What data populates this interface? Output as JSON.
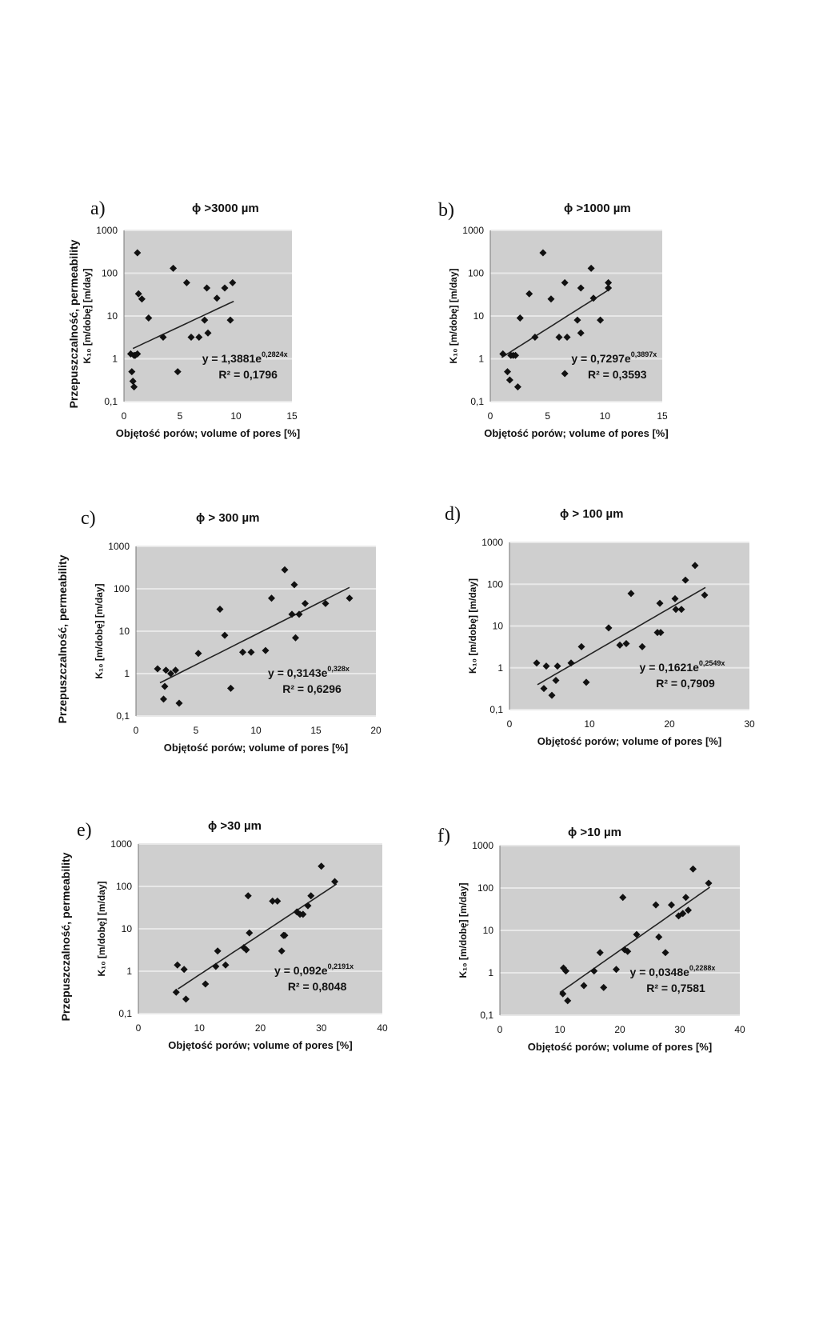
{
  "chart_data": [
    {
      "type": "scatter",
      "letter": "a)",
      "title": "ϕ >3000 µm",
      "xlabel": "Objętość porów; volume of pores [%]",
      "ylabel": "K₁₀ [m/dobę] [m/day]",
      "ylabel_outer": "Przepuszczalność, permeability",
      "xlim": [
        0,
        15
      ],
      "ylim": [
        0.1,
        1000
      ],
      "yscale": "log",
      "xticks": [
        "0",
        "5",
        "10",
        "15"
      ],
      "yticks": [
        "0,1",
        "1",
        "10",
        "100",
        "1000"
      ],
      "grid": true,
      "trendline": {
        "a": 1.3881,
        "b": 0.2824,
        "x_range": [
          0.8,
          9.8
        ]
      },
      "equation": "y = 1,3881e",
      "equation_exp": "0,2824x",
      "r2": "R² = 0,1796",
      "points": [
        [
          0.6,
          1.3
        ],
        [
          0.7,
          0.5
        ],
        [
          0.8,
          0.3
        ],
        [
          0.9,
          0.22
        ],
        [
          0.9,
          1.2
        ],
        [
          1.0,
          1.2
        ],
        [
          1.2,
          1.3
        ],
        [
          1.2,
          300
        ],
        [
          1.3,
          33
        ],
        [
          1.6,
          25
        ],
        [
          2.2,
          9
        ],
        [
          3.5,
          3.2
        ],
        [
          4.4,
          130
        ],
        [
          4.8,
          0.5
        ],
        [
          5.6,
          60
        ],
        [
          6.0,
          3.2
        ],
        [
          6.7,
          3.2
        ],
        [
          7.2,
          8
        ],
        [
          7.4,
          45
        ],
        [
          7.5,
          4
        ],
        [
          8.3,
          26
        ],
        [
          9.0,
          45
        ],
        [
          9.5,
          8
        ],
        [
          9.7,
          60
        ]
      ]
    },
    {
      "type": "scatter",
      "letter": "b)",
      "title": "ϕ >1000 µm",
      "xlabel": "Objętość porów; volume of pores [%]",
      "ylabel": "K₁₀ [m/dobę] [m/day]",
      "ylabel_outer": "",
      "xlim": [
        0,
        15
      ],
      "ylim": [
        0.1,
        1000
      ],
      "yscale": "log",
      "xticks": [
        "0",
        "5",
        "10",
        "15"
      ],
      "yticks": [
        "0,1",
        "1",
        "10",
        "100",
        "1000"
      ],
      "grid": true,
      "trendline": {
        "a": 0.7297,
        "b": 0.3897,
        "x_range": [
          1.0,
          10.3
        ]
      },
      "equation": "y = 0,7297e",
      "equation_exp": "0,3897x",
      "r2": "R² = 0,3593",
      "points": [
        [
          1.1,
          1.3
        ],
        [
          1.5,
          0.5
        ],
        [
          1.7,
          0.32
        ],
        [
          1.8,
          1.2
        ],
        [
          2.0,
          1.2
        ],
        [
          2.2,
          1.2
        ],
        [
          2.4,
          0.22
        ],
        [
          2.6,
          9
        ],
        [
          3.4,
          33
        ],
        [
          3.9,
          3.2
        ],
        [
          4.6,
          300
        ],
        [
          5.3,
          25
        ],
        [
          6.0,
          3.2
        ],
        [
          6.5,
          60
        ],
        [
          6.7,
          3.2
        ],
        [
          7.6,
          8
        ],
        [
          7.9,
          45
        ],
        [
          7.9,
          4
        ],
        [
          8.8,
          130
        ],
        [
          9.0,
          26
        ],
        [
          9.6,
          8
        ],
        [
          10.3,
          60
        ],
        [
          10.3,
          45
        ],
        [
          6.5,
          0.45
        ]
      ]
    },
    {
      "type": "scatter",
      "letter": "c)",
      "title": "ϕ > 300 µm",
      "xlabel": "Objętość porów; volume of pores [%]",
      "ylabel": "K₁₀ [m/dobę] [m/day]",
      "ylabel_outer": "Przepuszczalność, permeability",
      "xlim": [
        0,
        20
      ],
      "ylim": [
        0.1,
        1000
      ],
      "yscale": "log",
      "xticks": [
        "0",
        "5",
        "10",
        "15",
        "20"
      ],
      "yticks": [
        "0,1",
        "1",
        "10",
        "100",
        "1000"
      ],
      "grid": true,
      "trendline": {
        "a": 0.3143,
        "b": 0.328,
        "x_range": [
          2.0,
          17.8
        ]
      },
      "equation": "y = 0,3143e",
      "equation_exp": "0,328x",
      "r2": "R² = 0,6296",
      "points": [
        [
          1.8,
          1.3
        ],
        [
          2.3,
          0.25
        ],
        [
          2.4,
          0.5
        ],
        [
          2.5,
          1.2
        ],
        [
          2.9,
          1.0
        ],
        [
          3.3,
          1.2
        ],
        [
          3.6,
          0.2
        ],
        [
          5.2,
          3.0
        ],
        [
          7.0,
          33
        ],
        [
          7.4,
          8
        ],
        [
          7.9,
          0.45
        ],
        [
          8.9,
          3.2
        ],
        [
          9.6,
          3.2
        ],
        [
          10.8,
          3.5
        ],
        [
          11.3,
          60
        ],
        [
          12.4,
          280
        ],
        [
          13.0,
          25
        ],
        [
          13.2,
          125
        ],
        [
          13.3,
          7
        ],
        [
          13.6,
          25
        ],
        [
          14.1,
          45
        ],
        [
          15.8,
          45
        ],
        [
          17.8,
          60
        ]
      ]
    },
    {
      "type": "scatter",
      "letter": "d)",
      "title": "ϕ > 100 µm",
      "xlabel": "Objętość porów; volume of pores [%]",
      "ylabel": "K₁₀ [m/dobę] [m/day]",
      "ylabel_outer": "",
      "xlim": [
        0,
        30
      ],
      "ylim": [
        0.1,
        1000
      ],
      "yscale": "log",
      "xticks": [
        "0",
        "10",
        "20",
        "30"
      ],
      "yticks": [
        "0,1",
        "1",
        "10",
        "100",
        "1000"
      ],
      "grid": true,
      "trendline": {
        "a": 0.1621,
        "b": 0.2549,
        "x_range": [
          3.5,
          24.5
        ]
      },
      "equation": "y = 0,1621e",
      "equation_exp": "0,2549x",
      "r2": "R² = 0,7909",
      "points": [
        [
          3.4,
          1.3
        ],
        [
          4.3,
          0.32
        ],
        [
          4.6,
          1.1
        ],
        [
          5.3,
          0.22
        ],
        [
          5.8,
          0.5
        ],
        [
          6.0,
          1.1
        ],
        [
          7.7,
          1.3
        ],
        [
          9.0,
          3.2
        ],
        [
          9.6,
          0.45
        ],
        [
          12.4,
          9
        ],
        [
          13.8,
          3.5
        ],
        [
          14.6,
          3.8
        ],
        [
          15.2,
          60
        ],
        [
          16.6,
          3.2
        ],
        [
          18.5,
          7
        ],
        [
          18.8,
          35
        ],
        [
          18.9,
          7
        ],
        [
          20.7,
          45
        ],
        [
          20.8,
          25
        ],
        [
          21.5,
          25
        ],
        [
          22.0,
          125
        ],
        [
          23.2,
          280
        ],
        [
          24.4,
          55
        ]
      ]
    },
    {
      "type": "scatter",
      "letter": "e)",
      "title": "ϕ >30 µm",
      "xlabel": "Objętość porów; volume of pores [%]",
      "ylabel": "K₁₀ [m/dobę] [m/day]",
      "ylabel_outer": "Przepuszczalność, permeability",
      "xlim": [
        0,
        40
      ],
      "ylim": [
        0.1,
        1000
      ],
      "yscale": "log",
      "xticks": [
        "0",
        "10",
        "20",
        "30",
        "40"
      ],
      "yticks": [
        "0,1",
        "1",
        "10",
        "100",
        "1000"
      ],
      "grid": true,
      "trendline": {
        "a": 0.092,
        "b": 0.2191,
        "x_range": [
          6.5,
          32.5
        ]
      },
      "equation": "y = 0,092e",
      "equation_exp": "0,2191x",
      "r2": "R² = 0,8048",
      "points": [
        [
          6.2,
          0.32
        ],
        [
          6.4,
          1.4
        ],
        [
          7.5,
          1.1
        ],
        [
          7.8,
          0.22
        ],
        [
          11.0,
          0.5
        ],
        [
          12.7,
          1.3
        ],
        [
          13.0,
          3.0
        ],
        [
          14.3,
          1.4
        ],
        [
          17.3,
          3.6
        ],
        [
          17.7,
          3.2
        ],
        [
          18.0,
          60
        ],
        [
          18.2,
          8
        ],
        [
          22.0,
          45
        ],
        [
          22.8,
          45
        ],
        [
          23.5,
          3.0
        ],
        [
          23.8,
          7
        ],
        [
          24.0,
          7
        ],
        [
          26.0,
          25
        ],
        [
          26.5,
          22
        ],
        [
          27.0,
          22
        ],
        [
          27.8,
          35
        ],
        [
          28.3,
          60
        ],
        [
          30.0,
          300
        ],
        [
          32.2,
          130
        ]
      ]
    },
    {
      "type": "scatter",
      "letter": "f)",
      "title": "ϕ >10 µm",
      "xlabel": "Objętość porów; volume of pores [%]",
      "ylabel": "K₁₀ [m/dobę] [m/day]",
      "ylabel_outer": "",
      "xlim": [
        0,
        40
      ],
      "ylim": [
        0.1,
        1000
      ],
      "yscale": "log",
      "xticks": [
        "0",
        "10",
        "20",
        "30",
        "40"
      ],
      "yticks": [
        "0,1",
        "1",
        "10",
        "100",
        "1000"
      ],
      "grid": true,
      "trendline": {
        "a": 0.0348,
        "b": 0.2288,
        "x_range": [
          10.0,
          35.0
        ]
      },
      "equation": "y = 0,0348e",
      "equation_exp": "0,2288x",
      "r2": "R² = 0,7581",
      "points": [
        [
          10.5,
          0.32
        ],
        [
          10.6,
          1.3
        ],
        [
          11.0,
          1.1
        ],
        [
          11.3,
          0.22
        ],
        [
          14.0,
          0.5
        ],
        [
          15.7,
          1.1
        ],
        [
          16.7,
          3.0
        ],
        [
          17.3,
          0.45
        ],
        [
          19.4,
          1.2
        ],
        [
          20.5,
          60
        ],
        [
          20.8,
          3.5
        ],
        [
          21.3,
          3.2
        ],
        [
          22.8,
          8
        ],
        [
          26.0,
          40
        ],
        [
          26.5,
          7
        ],
        [
          27.6,
          3.0
        ],
        [
          28.6,
          40
        ],
        [
          29.8,
          22
        ],
        [
          30.5,
          25
        ],
        [
          31.0,
          60
        ],
        [
          31.4,
          30
        ],
        [
          32.2,
          280
        ],
        [
          34.8,
          130
        ]
      ]
    }
  ]
}
